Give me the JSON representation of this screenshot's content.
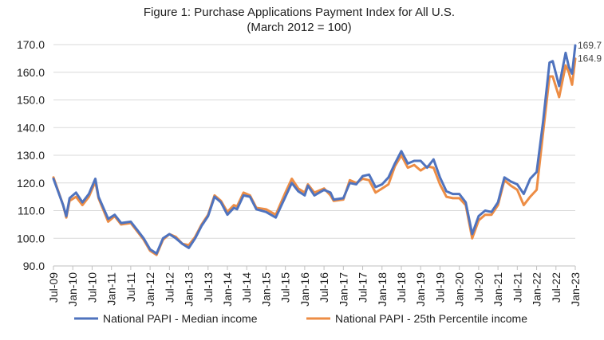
{
  "chart_data": {
    "type": "line",
    "title": "Figure 1: Purchase Applications Payment Index for All U.S.",
    "subtitle": "(March 2012 = 100)",
    "xlabel": "",
    "ylabel": "",
    "ylim": [
      90,
      170
    ],
    "yticks": [
      "90.0",
      "100.0",
      "110.0",
      "120.0",
      "130.0",
      "140.0",
      "150.0",
      "160.0",
      "170.0"
    ],
    "grid": "horizontal",
    "legend": "bottom",
    "xticks": [
      "Jul-09",
      "Jan-10",
      "Jul-10",
      "Jan-11",
      "Jul-11",
      "Jan-12",
      "Jul-12",
      "Jan-13",
      "Jul-13",
      "Jan-14",
      "Jul-14",
      "Jan-15",
      "Jul-15",
      "Jan-16",
      "Jul-16",
      "Jan-17",
      "Jul-17",
      "Jan-18",
      "Jul-18",
      "Jan-19",
      "Jul-19",
      "Jan-20",
      "Jul-20",
      "Jan-21",
      "Jul-21",
      "Jan-22",
      "Jul-22",
      "Jan-23"
    ],
    "x_start": "2009-07",
    "x_end": "2023-01",
    "series": [
      {
        "name": "National PAPI - Median income",
        "color": "#4F73BE",
        "end_label": "169.7",
        "points": [
          [
            "2009-07",
            121.5
          ],
          [
            "2009-10",
            112
          ],
          [
            "2009-11",
            108
          ],
          [
            "2009-12",
            114.5
          ],
          [
            "2010-02",
            116.5
          ],
          [
            "2010-04",
            113
          ],
          [
            "2010-06",
            116
          ],
          [
            "2010-08",
            121.5
          ],
          [
            "2010-09",
            115
          ],
          [
            "2010-12",
            107
          ],
          [
            "2011-02",
            108.5
          ],
          [
            "2011-04",
            105.5
          ],
          [
            "2011-07",
            106
          ],
          [
            "2011-09",
            103
          ],
          [
            "2011-11",
            100
          ],
          [
            "2012-01",
            96
          ],
          [
            "2012-03",
            94.5
          ],
          [
            "2012-05",
            100
          ],
          [
            "2012-07",
            101.5
          ],
          [
            "2012-09",
            100
          ],
          [
            "2012-11",
            98
          ],
          [
            "2013-01",
            96.5
          ],
          [
            "2013-03",
            100
          ],
          [
            "2013-05",
            104.5
          ],
          [
            "2013-07",
            108
          ],
          [
            "2013-09",
            115
          ],
          [
            "2013-11",
            113
          ],
          [
            "2014-01",
            108.5
          ],
          [
            "2014-03",
            111
          ],
          [
            "2014-04",
            110.5
          ],
          [
            "2014-06",
            115.5
          ],
          [
            "2014-08",
            115
          ],
          [
            "2014-10",
            110.5
          ],
          [
            "2015-01",
            109.5
          ],
          [
            "2015-04",
            107.5
          ],
          [
            "2015-07",
            115
          ],
          [
            "2015-09",
            120
          ],
          [
            "2015-11",
            117
          ],
          [
            "2016-01",
            115.5
          ],
          [
            "2016-02",
            119
          ],
          [
            "2016-04",
            115.5
          ],
          [
            "2016-07",
            117.5
          ],
          [
            "2016-09",
            116.5
          ],
          [
            "2016-10",
            114
          ],
          [
            "2017-01",
            114.5
          ],
          [
            "2017-03",
            120
          ],
          [
            "2017-05",
            119.5
          ],
          [
            "2017-07",
            122.5
          ],
          [
            "2017-09",
            123
          ],
          [
            "2017-11",
            118.5
          ],
          [
            "2018-01",
            119.5
          ],
          [
            "2018-03",
            122
          ],
          [
            "2018-05",
            127
          ],
          [
            "2018-07",
            131.5
          ],
          [
            "2018-09",
            127
          ],
          [
            "2018-11",
            128
          ],
          [
            "2019-01",
            128
          ],
          [
            "2019-03",
            125.5
          ],
          [
            "2019-05",
            128.5
          ],
          [
            "2019-07",
            122
          ],
          [
            "2019-09",
            117
          ],
          [
            "2019-11",
            116
          ],
          [
            "2020-01",
            116
          ],
          [
            "2020-03",
            113
          ],
          [
            "2020-05",
            101.5
          ],
          [
            "2020-07",
            108
          ],
          [
            "2020-09",
            110
          ],
          [
            "2020-11",
            109.5
          ],
          [
            "2021-01",
            113
          ],
          [
            "2021-03",
            122
          ],
          [
            "2021-05",
            120.5
          ],
          [
            "2021-07",
            119.5
          ],
          [
            "2021-09",
            116
          ],
          [
            "2021-11",
            121.5
          ],
          [
            "2022-01",
            124
          ],
          [
            "2022-03",
            142
          ],
          [
            "2022-05",
            163.5
          ],
          [
            "2022-06",
            164
          ],
          [
            "2022-08",
            155
          ],
          [
            "2022-10",
            167
          ],
          [
            "2022-11",
            162
          ],
          [
            "2022-12",
            159.5
          ],
          [
            "2023-01",
            169.7
          ]
        ]
      },
      {
        "name": "National PAPI - 25th Percentile income",
        "color": "#ED8D45",
        "end_label": "164.9",
        "points": [
          [
            "2009-07",
            122
          ],
          [
            "2009-10",
            112
          ],
          [
            "2009-11",
            107.5
          ],
          [
            "2009-12",
            113.5
          ],
          [
            "2010-02",
            115
          ],
          [
            "2010-04",
            112
          ],
          [
            "2010-06",
            115
          ],
          [
            "2010-08",
            120.5
          ],
          [
            "2010-09",
            114.5
          ],
          [
            "2010-12",
            106
          ],
          [
            "2011-02",
            108
          ],
          [
            "2011-04",
            105
          ],
          [
            "2011-07",
            105.5
          ],
          [
            "2011-09",
            102.5
          ],
          [
            "2011-11",
            99.5
          ],
          [
            "2012-01",
            95.5
          ],
          [
            "2012-03",
            94
          ],
          [
            "2012-05",
            99.5
          ],
          [
            "2012-07",
            101.5
          ],
          [
            "2012-09",
            100.5
          ],
          [
            "2012-11",
            98
          ],
          [
            "2013-01",
            97.5
          ],
          [
            "2013-03",
            100.5
          ],
          [
            "2013-05",
            105
          ],
          [
            "2013-07",
            108.5
          ],
          [
            "2013-09",
            115.5
          ],
          [
            "2013-11",
            113.5
          ],
          [
            "2014-01",
            109.5
          ],
          [
            "2014-03",
            112
          ],
          [
            "2014-04",
            111.5
          ],
          [
            "2014-06",
            116.5
          ],
          [
            "2014-08",
            115.5
          ],
          [
            "2014-10",
            111
          ],
          [
            "2015-01",
            110.5
          ],
          [
            "2015-04",
            108.5
          ],
          [
            "2015-07",
            116.5
          ],
          [
            "2015-09",
            121.5
          ],
          [
            "2015-11",
            118
          ],
          [
            "2016-01",
            116.5
          ],
          [
            "2016-02",
            119.5
          ],
          [
            "2016-04",
            116.5
          ],
          [
            "2016-07",
            118
          ],
          [
            "2016-09",
            115.5
          ],
          [
            "2016-10",
            113.5
          ],
          [
            "2017-01",
            114
          ],
          [
            "2017-03",
            121
          ],
          [
            "2017-05",
            120
          ],
          [
            "2017-07",
            121.5
          ],
          [
            "2017-09",
            121
          ],
          [
            "2017-11",
            116.5
          ],
          [
            "2018-01",
            118
          ],
          [
            "2018-03",
            119.5
          ],
          [
            "2018-05",
            126
          ],
          [
            "2018-07",
            130
          ],
          [
            "2018-09",
            125.5
          ],
          [
            "2018-11",
            126.5
          ],
          [
            "2019-01",
            124.5
          ],
          [
            "2019-03",
            126
          ],
          [
            "2019-05",
            125.5
          ],
          [
            "2019-07",
            119.5
          ],
          [
            "2019-09",
            115
          ],
          [
            "2019-11",
            114.5
          ],
          [
            "2020-01",
            114.5
          ],
          [
            "2020-03",
            112
          ],
          [
            "2020-05",
            100
          ],
          [
            "2020-07",
            106.5
          ],
          [
            "2020-09",
            108.5
          ],
          [
            "2020-11",
            108.5
          ],
          [
            "2021-01",
            112
          ],
          [
            "2021-03",
            121
          ],
          [
            "2021-05",
            119
          ],
          [
            "2021-07",
            117.5
          ],
          [
            "2021-09",
            112
          ],
          [
            "2021-11",
            115
          ],
          [
            "2022-01",
            117.5
          ],
          [
            "2022-03",
            138
          ],
          [
            "2022-05",
            158.5
          ],
          [
            "2022-06",
            158.5
          ],
          [
            "2022-08",
            151
          ],
          [
            "2022-10",
            162.5
          ],
          [
            "2022-11",
            160
          ],
          [
            "2022-12",
            155.5
          ],
          [
            "2023-01",
            164.9
          ]
        ]
      }
    ]
  }
}
